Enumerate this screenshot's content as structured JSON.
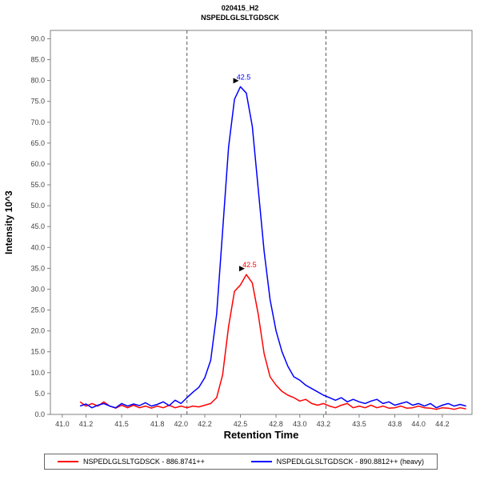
{
  "title": {
    "line1": "020415_H2",
    "line2": "NSPEDLGLSLTGDSCK"
  },
  "axes": {
    "y_label": "Intensity 10^3",
    "x_label": "Retention Time"
  },
  "legend": [
    {
      "label": "NSPEDLGLSLTGDSCK - 886.8741++",
      "color": "#ff0000"
    },
    {
      "label": "NSPEDLGLSLTGDSCK - 890.8812++ (heavy)",
      "color": "#0000ff"
    }
  ],
  "chart_data": {
    "type": "line",
    "title": "020415_H2 NSPEDLGLSLTGDSCK",
    "xlabel": "Retention Time",
    "ylabel": "Intensity 10^3",
    "xlim": [
      40.9,
      44.45
    ],
    "ylim": [
      0,
      92
    ],
    "x_ticks": [
      41.0,
      41.2,
      41.5,
      41.8,
      42.0,
      42.2,
      42.5,
      42.8,
      43.0,
      43.2,
      43.5,
      43.8,
      44.0,
      44.2
    ],
    "x_tick_labels": [
      "41.0",
      "41.2",
      "41.5",
      "41.8",
      "42.0",
      "42.2",
      "42.5",
      "42.8",
      "43.0",
      "43.2",
      "43.5",
      "43.8",
      "44.0",
      "44.2"
    ],
    "y_ticks": [
      0,
      5,
      10,
      15,
      20,
      25,
      30,
      35,
      40,
      45,
      50,
      55,
      60,
      65,
      70,
      75,
      80,
      85,
      90
    ],
    "y_tick_labels": [
      "0.0",
      "5.0",
      "10.0",
      "15.0",
      "20.0",
      "25.0",
      "30.0",
      "35.0",
      "40.0",
      "45.0",
      "50.0",
      "55.0",
      "60.0",
      "65.0",
      "70.0",
      "75.0",
      "80.0",
      "85.0",
      "90.0"
    ],
    "integration_boundaries": [
      42.05,
      43.22
    ],
    "axis_color": "#808080",
    "tick_text_color": "#404040",
    "boundary_color": "#555555",
    "x": [
      41.15,
      41.2,
      41.25,
      41.3,
      41.35,
      41.4,
      41.45,
      41.5,
      41.55,
      41.6,
      41.65,
      41.7,
      41.75,
      41.8,
      41.85,
      41.9,
      41.95,
      42.0,
      42.05,
      42.1,
      42.15,
      42.2,
      42.25,
      42.3,
      42.35,
      42.4,
      42.45,
      42.5,
      42.55,
      42.6,
      42.65,
      42.7,
      42.75,
      42.8,
      42.85,
      42.9,
      42.95,
      43.0,
      43.05,
      43.1,
      43.15,
      43.2,
      43.25,
      43.3,
      43.35,
      43.4,
      43.45,
      43.5,
      43.55,
      43.6,
      43.65,
      43.7,
      43.75,
      43.8,
      43.85,
      43.9,
      43.95,
      44.0,
      44.05,
      44.1,
      44.15,
      44.2,
      44.25,
      44.3,
      44.35,
      44.4
    ],
    "series": [
      {
        "name": "NSPEDLGLSLTGDSCK - 886.8741++",
        "color": "#ff0000",
        "peak_annotation": {
          "x": 42.55,
          "y": 33.5,
          "label": "42.5"
        },
        "values": [
          3.0,
          2.0,
          2.6,
          2.0,
          3.0,
          2.0,
          1.5,
          2.2,
          1.6,
          2.2,
          1.6,
          2.0,
          1.5,
          2.0,
          1.6,
          2.2,
          1.6,
          2.0,
          1.6,
          2.0,
          1.8,
          2.2,
          2.6,
          4.0,
          9.5,
          21.0,
          29.5,
          31.0,
          33.5,
          31.5,
          24.0,
          14.5,
          9.0,
          7.0,
          5.5,
          4.6,
          4.0,
          3.2,
          3.6,
          2.6,
          2.2,
          2.6,
          2.0,
          1.6,
          2.2,
          2.6,
          1.6,
          2.0,
          1.6,
          2.2,
          1.6,
          2.0,
          1.5,
          1.6,
          2.0,
          1.5,
          1.6,
          2.0,
          1.6,
          1.5,
          1.2,
          1.6,
          1.5,
          1.2,
          1.6,
          1.3
        ]
      },
      {
        "name": "NSPEDLGLSLTGDSCK - 890.8812++ (heavy)",
        "color": "#0000ff",
        "peak_annotation": {
          "x": 42.5,
          "y": 78.5,
          "label": "42.5"
        },
        "values": [
          2.0,
          2.5,
          1.6,
          2.2,
          2.6,
          2.0,
          1.6,
          2.6,
          2.0,
          2.5,
          2.1,
          2.8,
          2.0,
          2.4,
          3.0,
          2.1,
          3.4,
          2.6,
          4.0,
          5.3,
          6.5,
          8.8,
          13.0,
          24.0,
          44.0,
          64.0,
          75.5,
          78.5,
          77.0,
          69.0,
          54.0,
          39.0,
          27.5,
          20.0,
          15.0,
          11.5,
          9.0,
          8.2,
          7.0,
          6.2,
          5.4,
          4.6,
          4.0,
          3.4,
          4.0,
          3.0,
          3.6,
          3.0,
          2.6,
          3.2,
          3.6,
          2.6,
          3.0,
          2.2,
          2.6,
          3.0,
          2.2,
          2.6,
          2.0,
          2.6,
          1.6,
          2.2,
          2.6,
          2.0,
          2.4,
          2.0
        ]
      }
    ],
    "legend_position": "bottom",
    "grid": false
  }
}
